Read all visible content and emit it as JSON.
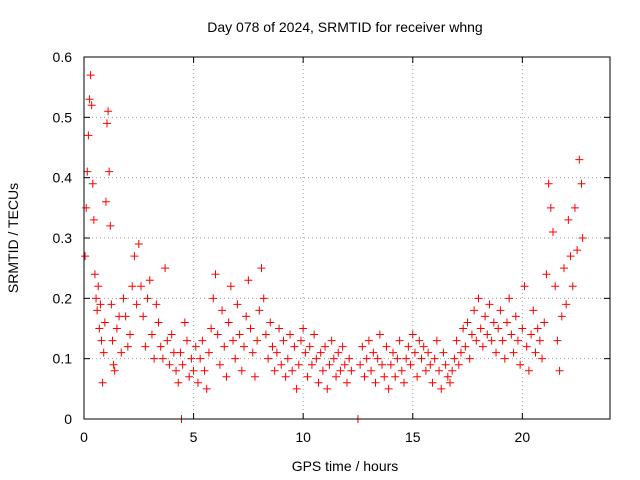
{
  "chart_data": {
    "type": "scatter",
    "title": "Day 078 of 2024, SRMTID for receiver whng",
    "xlabel": "GPS time / hours",
    "ylabel": "SRMTID / TECUs",
    "xlim": [
      0,
      24
    ],
    "ylim": [
      0,
      0.6
    ],
    "xticks": [
      0,
      5,
      10,
      15,
      20
    ],
    "xtick_labels": [
      "0",
      "5",
      "10",
      "15",
      "20"
    ],
    "yticks": [
      0,
      0.1,
      0.2,
      0.3,
      0.4,
      0.5,
      0.6
    ],
    "ytick_labels": [
      "0",
      "0.1",
      "0.2",
      "0.3",
      "0.4",
      "0.5",
      "0.6"
    ],
    "grid": true,
    "marker": "plus",
    "series": [
      {
        "name": "SRMTID",
        "color": "#ff0000",
        "points": [
          [
            0.05,
            0.27
          ],
          [
            0.1,
            0.35
          ],
          [
            0.15,
            0.41
          ],
          [
            0.2,
            0.47
          ],
          [
            0.25,
            0.53
          ],
          [
            0.3,
            0.57
          ],
          [
            0.35,
            0.52
          ],
          [
            0.4,
            0.39
          ],
          [
            0.45,
            0.33
          ],
          [
            0.5,
            0.24
          ],
          [
            0.55,
            0.2
          ],
          [
            0.6,
            0.18
          ],
          [
            0.65,
            0.22
          ],
          [
            0.7,
            0.15
          ],
          [
            0.75,
            0.19
          ],
          [
            0.8,
            0.13
          ],
          [
            0.85,
            0.06
          ],
          [
            0.9,
            0.11
          ],
          [
            0.95,
            0.16
          ],
          [
            1.0,
            0.36
          ],
          [
            1.05,
            0.49
          ],
          [
            1.1,
            0.51
          ],
          [
            1.15,
            0.41
          ],
          [
            1.2,
            0.32
          ],
          [
            1.25,
            0.19
          ],
          [
            1.3,
            0.13
          ],
          [
            1.35,
            0.09
          ],
          [
            1.4,
            0.08
          ],
          [
            1.5,
            0.15
          ],
          [
            1.6,
            0.17
          ],
          [
            1.7,
            0.11
          ],
          [
            1.8,
            0.2
          ],
          [
            1.9,
            0.17
          ],
          [
            2.0,
            0.12
          ],
          [
            2.1,
            0.14
          ],
          [
            2.2,
            0.22
          ],
          [
            2.3,
            0.27
          ],
          [
            2.4,
            0.19
          ],
          [
            2.5,
            0.29
          ],
          [
            2.6,
            0.22
          ],
          [
            2.7,
            0.17
          ],
          [
            2.8,
            0.12
          ],
          [
            2.9,
            0.2
          ],
          [
            3.0,
            0.23
          ],
          [
            3.1,
            0.14
          ],
          [
            3.2,
            0.1
          ],
          [
            3.3,
            0.19
          ],
          [
            3.4,
            0.16
          ],
          [
            3.5,
            0.12
          ],
          [
            3.6,
            0.1
          ],
          [
            3.7,
            0.25
          ],
          [
            3.8,
            0.13
          ],
          [
            3.9,
            0.09
          ],
          [
            4.0,
            0.14
          ],
          [
            4.1,
            0.11
          ],
          [
            4.2,
            0.08
          ],
          [
            4.3,
            0.06
          ],
          [
            4.4,
            0.11
          ],
          [
            4.45,
            0.0
          ],
          [
            4.5,
            0.09
          ],
          [
            4.6,
            0.16
          ],
          [
            4.7,
            0.13
          ],
          [
            4.8,
            0.07
          ],
          [
            4.9,
            0.1
          ],
          [
            5.0,
            0.08
          ],
          [
            5.1,
            0.12
          ],
          [
            5.2,
            0.06
          ],
          [
            5.3,
            0.1
          ],
          [
            5.4,
            0.13
          ],
          [
            5.5,
            0.08
          ],
          [
            5.6,
            0.05
          ],
          [
            5.7,
            0.11
          ],
          [
            5.8,
            0.15
          ],
          [
            5.9,
            0.2
          ],
          [
            6.0,
            0.24
          ],
          [
            6.1,
            0.14
          ],
          [
            6.2,
            0.09
          ],
          [
            6.3,
            0.18
          ],
          [
            6.4,
            0.12
          ],
          [
            6.5,
            0.07
          ],
          [
            6.6,
            0.16
          ],
          [
            6.7,
            0.22
          ],
          [
            6.8,
            0.13
          ],
          [
            6.9,
            0.1
          ],
          [
            7.0,
            0.19
          ],
          [
            7.1,
            0.14
          ],
          [
            7.2,
            0.08
          ],
          [
            7.3,
            0.12
          ],
          [
            7.4,
            0.17
          ],
          [
            7.5,
            0.23
          ],
          [
            7.6,
            0.15
          ],
          [
            7.7,
            0.11
          ],
          [
            7.8,
            0.07
          ],
          [
            7.9,
            0.13
          ],
          [
            8.0,
            0.18
          ],
          [
            8.1,
            0.25
          ],
          [
            8.2,
            0.2
          ],
          [
            8.3,
            0.14
          ],
          [
            8.4,
            0.1
          ],
          [
            8.5,
            0.16
          ],
          [
            8.6,
            0.12
          ],
          [
            8.7,
            0.08
          ],
          [
            8.8,
            0.11
          ],
          [
            8.9,
            0.15
          ],
          [
            9.0,
            0.09
          ],
          [
            9.1,
            0.13
          ],
          [
            9.2,
            0.07
          ],
          [
            9.3,
            0.1
          ],
          [
            9.4,
            0.14
          ],
          [
            9.5,
            0.08
          ],
          [
            9.6,
            0.12
          ],
          [
            9.7,
            0.05
          ],
          [
            9.8,
            0.09
          ],
          [
            9.9,
            0.13
          ],
          [
            10.0,
            0.15
          ],
          [
            10.1,
            0.11
          ],
          [
            10.2,
            0.07
          ],
          [
            10.3,
            0.12
          ],
          [
            10.4,
            0.09
          ],
          [
            10.5,
            0.14
          ],
          [
            10.6,
            0.1
          ],
          [
            10.7,
            0.06
          ],
          [
            10.8,
            0.11
          ],
          [
            10.9,
            0.08
          ],
          [
            11.0,
            0.12
          ],
          [
            11.1,
            0.05
          ],
          [
            11.2,
            0.09
          ],
          [
            11.3,
            0.13
          ],
          [
            11.4,
            0.1
          ],
          [
            11.5,
            0.07
          ],
          [
            11.6,
            0.11
          ],
          [
            11.7,
            0.08
          ],
          [
            11.8,
            0.12
          ],
          [
            11.9,
            0.09
          ],
          [
            12.0,
            0.06
          ],
          [
            12.1,
            0.1
          ],
          [
            12.2,
            0.08
          ],
          [
            12.5,
            0.0
          ],
          [
            12.6,
            0.09
          ],
          [
            12.7,
            0.12
          ],
          [
            12.8,
            0.07
          ],
          [
            12.9,
            0.1
          ],
          [
            13.0,
            0.13
          ],
          [
            13.1,
            0.08
          ],
          [
            13.2,
            0.11
          ],
          [
            13.3,
            0.06
          ],
          [
            13.4,
            0.1
          ],
          [
            13.5,
            0.14
          ],
          [
            13.6,
            0.09
          ],
          [
            13.7,
            0.07
          ],
          [
            13.8,
            0.12
          ],
          [
            13.9,
            0.05
          ],
          [
            14.0,
            0.09
          ],
          [
            14.1,
            0.11
          ],
          [
            14.2,
            0.07
          ],
          [
            14.3,
            0.1
          ],
          [
            14.4,
            0.13
          ],
          [
            14.5,
            0.08
          ],
          [
            14.6,
            0.06
          ],
          [
            14.7,
            0.1
          ],
          [
            14.8,
            0.12
          ],
          [
            14.9,
            0.09
          ],
          [
            15.0,
            0.14
          ],
          [
            15.1,
            0.11
          ],
          [
            15.2,
            0.07
          ],
          [
            15.3,
            0.13
          ],
          [
            15.4,
            0.1
          ],
          [
            15.5,
            0.12
          ],
          [
            15.6,
            0.08
          ],
          [
            15.7,
            0.11
          ],
          [
            15.8,
            0.09
          ],
          [
            15.9,
            0.06
          ],
          [
            16.0,
            0.1
          ],
          [
            16.1,
            0.13
          ],
          [
            16.2,
            0.08
          ],
          [
            16.3,
            0.05
          ],
          [
            16.4,
            0.11
          ],
          [
            16.5,
            0.09
          ],
          [
            16.6,
            0.07
          ],
          [
            16.7,
            0.06
          ],
          [
            16.8,
            0.08
          ],
          [
            16.9,
            0.1
          ],
          [
            17.0,
            0.13
          ],
          [
            17.1,
            0.09
          ],
          [
            17.2,
            0.11
          ],
          [
            17.3,
            0.15
          ],
          [
            17.4,
            0.12
          ],
          [
            17.5,
            0.16
          ],
          [
            17.6,
            0.1
          ],
          [
            17.7,
            0.14
          ],
          [
            17.8,
            0.18
          ],
          [
            17.9,
            0.13
          ],
          [
            18.0,
            0.2
          ],
          [
            18.1,
            0.15
          ],
          [
            18.2,
            0.12
          ],
          [
            18.3,
            0.17
          ],
          [
            18.4,
            0.14
          ],
          [
            18.5,
            0.19
          ],
          [
            18.6,
            0.13
          ],
          [
            18.7,
            0.16
          ],
          [
            18.8,
            0.11
          ],
          [
            18.9,
            0.15
          ],
          [
            19.0,
            0.18
          ],
          [
            19.1,
            0.13
          ],
          [
            19.2,
            0.1
          ],
          [
            19.3,
            0.16
          ],
          [
            19.4,
            0.2
          ],
          [
            19.5,
            0.14
          ],
          [
            19.6,
            0.11
          ],
          [
            19.7,
            0.17
          ],
          [
            19.8,
            0.13
          ],
          [
            19.9,
            0.09
          ],
          [
            20.0,
            0.15
          ],
          [
            20.1,
            0.22
          ],
          [
            20.2,
            0.12
          ],
          [
            20.3,
            0.08
          ],
          [
            20.4,
            0.14
          ],
          [
            20.5,
            0.18
          ],
          [
            20.6,
            0.11
          ],
          [
            20.7,
            0.15
          ],
          [
            20.8,
            0.13
          ],
          [
            20.9,
            0.1
          ],
          [
            21.0,
            0.16
          ],
          [
            21.1,
            0.24
          ],
          [
            21.2,
            0.39
          ],
          [
            21.3,
            0.35
          ],
          [
            21.4,
            0.31
          ],
          [
            21.5,
            0.22
          ],
          [
            21.6,
            0.13
          ],
          [
            21.7,
            0.08
          ],
          [
            21.8,
            0.17
          ],
          [
            21.9,
            0.25
          ],
          [
            22.0,
            0.19
          ],
          [
            22.1,
            0.33
          ],
          [
            22.2,
            0.27
          ],
          [
            22.3,
            0.22
          ],
          [
            22.4,
            0.35
          ],
          [
            22.5,
            0.28
          ],
          [
            22.6,
            0.43
          ],
          [
            22.7,
            0.39
          ],
          [
            22.75,
            0.3
          ]
        ]
      }
    ]
  }
}
